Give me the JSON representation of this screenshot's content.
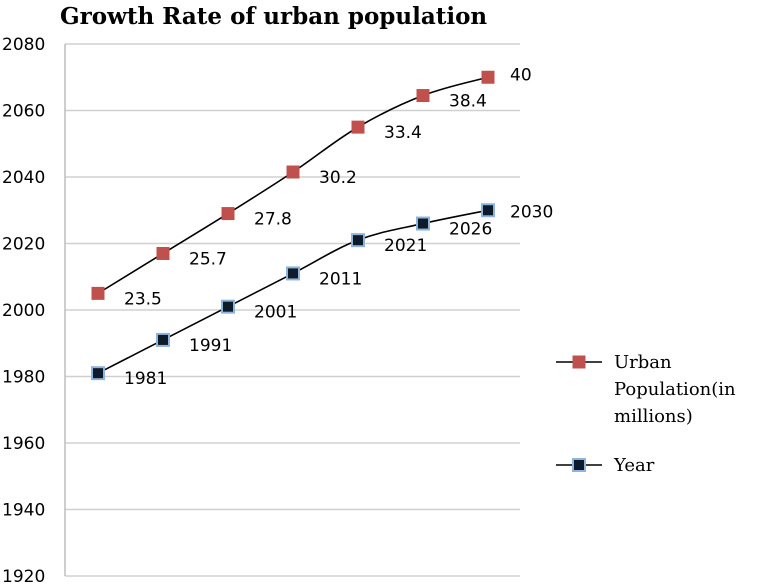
{
  "chart_data": {
    "type": "line",
    "title": "Growth Rate of urban population",
    "xlabel": "",
    "ylabel": "",
    "ylim": [
      1920,
      2080
    ],
    "y_ticks": [
      "1920",
      "1940",
      "1960",
      "1980",
      "2000",
      "2020",
      "2040",
      "2060",
      "2080"
    ],
    "grid": true,
    "legend_position": "right",
    "series": [
      {
        "name": "Urban Population(in millions)",
        "legend_lines": [
          "Urban",
          "Population(in",
          "millions)"
        ],
        "color": "#c0504d",
        "values": [
          2005,
          2017,
          2029,
          2041.5,
          2055,
          2064.5,
          2070
        ],
        "labels": [
          "23.5",
          "25.7",
          "27.8",
          "30.2",
          "33.4",
          "38.4",
          "40"
        ]
      },
      {
        "name": "Year",
        "legend_lines": [
          "Year"
        ],
        "color": "#0d1b2a",
        "values": [
          1981,
          1991,
          2001,
          2011,
          2021,
          2026,
          2030
        ],
        "labels": [
          "1981",
          "1991",
          "2001",
          "2011",
          "2021",
          "2026",
          "2030"
        ]
      }
    ]
  }
}
